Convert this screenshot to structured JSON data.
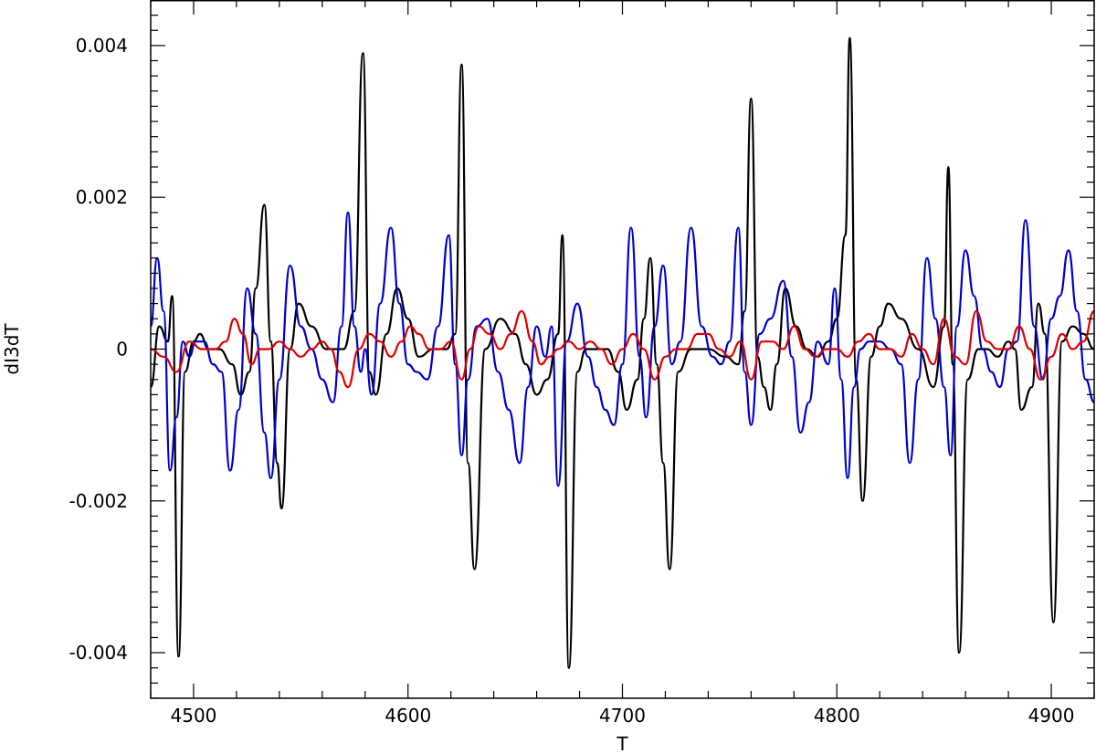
{
  "chart_data": {
    "type": "line",
    "xlabel": "T",
    "ylabel": "dI3dT",
    "xlim": [
      4480,
      4920
    ],
    "ylim": [
      -0.0046,
      0.0046
    ],
    "x_ticks": [
      4500,
      4600,
      4700,
      4800,
      4900
    ],
    "x_tick_labels": [
      "4500",
      "4600",
      "4700",
      "4800",
      "4900"
    ],
    "y_ticks": [
      -0.004,
      -0.002,
      0,
      0.002,
      0.004
    ],
    "y_tick_labels": [
      "-0.004",
      "-0.002",
      "0",
      "0.002",
      "0.004"
    ],
    "grid": false,
    "legend": "none",
    "series": [
      {
        "color": "#000000",
        "x": [
          4480,
          4484,
          4488,
          4490,
          4493,
          4496,
          4500,
          4503,
          4507,
          4512,
          4518,
          4522,
          4526,
          4529,
          4533,
          4536,
          4539,
          4541,
          4545,
          4549,
          4555,
          4562,
          4570,
          4575,
          4579,
          4582,
          4585,
          4590,
          4595,
          4600,
          4605,
          4612,
          4618,
          4622,
          4625,
          4628,
          4631,
          4636,
          4643,
          4650,
          4655,
          4660,
          4665,
          4670,
          4672,
          4675,
          4679,
          4683,
          4688,
          4693,
          4698,
          4702,
          4707,
          4710,
          4713,
          4716,
          4719,
          4722,
          4726,
          4732,
          4740,
          4748,
          4754,
          4757,
          4760,
          4763,
          4766,
          4769,
          4772,
          4776,
          4781,
          4786,
          4791,
          4796,
          4800,
          4804,
          4806,
          4809,
          4812,
          4816,
          4820,
          4824,
          4830,
          4838,
          4845,
          4850,
          4852,
          4854,
          4857,
          4861,
          4866,
          4870,
          4875,
          4880,
          4883,
          4886,
          4891,
          4894,
          4897,
          4901,
          4905,
          4910,
          4915,
          4920
        ],
        "y": [
          -0.0005,
          0.0003,
          0.0001,
          0.0007,
          -0.00405,
          -0.0003,
          0.0001,
          0.0002,
          0.0,
          0.0,
          -0.0002,
          -0.0006,
          -0.0003,
          0.0008,
          0.0019,
          0.0001,
          -0.0015,
          -0.0021,
          0.0,
          0.0006,
          0.0003,
          0.0,
          0.0,
          0.0005,
          0.0039,
          -0.0003,
          -0.0006,
          0.0002,
          0.0008,
          0.0004,
          -0.0001,
          0.0,
          0.0,
          0.0002,
          0.00375,
          -0.0015,
          -0.0029,
          0.0,
          0.0004,
          0.0002,
          -0.0002,
          -0.0006,
          -0.0004,
          0.0002,
          0.0015,
          -0.0042,
          -0.0003,
          0.0,
          0.0,
          0.0,
          -0.0003,
          -0.0008,
          -0.0004,
          0.0004,
          0.0012,
          -0.0002,
          -0.0015,
          -0.0029,
          -0.0003,
          0.0,
          0.0,
          -0.0001,
          -0.0002,
          0.0005,
          0.0033,
          -0.0001,
          -0.0005,
          -0.0008,
          -0.0002,
          0.0008,
          0.0003,
          0.0,
          -0.0001,
          0.0001,
          0.0004,
          0.0015,
          0.0041,
          -0.0004,
          -0.002,
          -0.0001,
          0.0003,
          0.0006,
          0.0004,
          0.0,
          -0.0005,
          0.0003,
          0.0024,
          -0.0002,
          -0.004,
          -0.0004,
          0.0,
          0.0,
          -0.0001,
          0.0001,
          0.0,
          -0.0008,
          -0.0005,
          0.0006,
          0.0002,
          -0.0036,
          0.0001,
          0.0003,
          0.0002,
          0.0
        ]
      },
      {
        "color": "#0000cc",
        "x": [
          4480,
          4483,
          4486,
          4489,
          4492,
          4495,
          4498,
          4501,
          4505,
          4509,
          4513,
          4517,
          4521,
          4525,
          4529,
          4533,
          4536,
          4540,
          4545,
          4550,
          4555,
          4560,
          4565,
          4569,
          4572,
          4575,
          4578,
          4580,
          4583,
          4587,
          4592,
          4596,
          4600,
          4604,
          4609,
          4614,
          4619,
          4622,
          4625,
          4628,
          4632,
          4637,
          4642,
          4647,
          4652,
          4656,
          4660,
          4664,
          4667,
          4670,
          4674,
          4679,
          4684,
          4688,
          4692,
          4696,
          4700,
          4704,
          4708,
          4711,
          4715,
          4719,
          4723,
          4727,
          4732,
          4737,
          4742,
          4746,
          4750,
          4754,
          4757,
          4760,
          4764,
          4769,
          4775,
          4779,
          4783,
          4787,
          4791,
          4796,
          4799,
          4802,
          4805,
          4808,
          4811,
          4815,
          4820,
          4825,
          4830,
          4834,
          4838,
          4842,
          4846,
          4850,
          4853,
          4856,
          4860,
          4864,
          4868,
          4872,
          4876,
          4880,
          4884,
          4888,
          4892,
          4896,
          4900,
          4904,
          4908,
          4912,
          4916,
          4920
        ],
        "y": [
          0.0003,
          0.0012,
          0.0005,
          -0.0016,
          -0.0009,
          0.0001,
          -0.0001,
          0.0001,
          0.0001,
          -0.0002,
          -0.0003,
          -0.0016,
          -0.0008,
          0.0008,
          0.0002,
          -0.0011,
          -0.0017,
          -0.0004,
          0.0011,
          0.0003,
          0.0,
          -0.0004,
          -0.0007,
          0.0003,
          0.0018,
          0.0003,
          -0.0003,
          0.0,
          -0.0006,
          0.0006,
          0.0016,
          0.0006,
          -0.0002,
          -0.0003,
          -0.0004,
          0.0003,
          0.0015,
          -0.0002,
          -0.0014,
          -0.0004,
          0.0003,
          0.0004,
          -0.0003,
          -0.0008,
          -0.0015,
          -0.0005,
          0.0003,
          -0.0001,
          0.0003,
          -0.0018,
          0.0001,
          0.0006,
          -0.0001,
          -0.0005,
          -0.0008,
          -0.001,
          -0.0002,
          0.0016,
          -0.0001,
          -0.0009,
          0.0003,
          0.0011,
          -0.0002,
          0.0001,
          0.0016,
          0.0003,
          -0.0001,
          -0.0002,
          0.0001,
          0.0016,
          -0.0003,
          -0.001,
          0.0002,
          0.0004,
          0.0009,
          -0.0001,
          -0.0011,
          -0.0007,
          0.0001,
          -0.0002,
          0.0008,
          -0.0004,
          -0.0017,
          -0.0005,
          0.0,
          0.0001,
          0.0001,
          0.0,
          -0.0002,
          -0.0015,
          -0.0004,
          0.0012,
          0.0004,
          -0.0005,
          -0.0014,
          0.0003,
          0.0013,
          0.0007,
          0.0,
          -0.0003,
          -0.0005,
          0.0,
          0.0001,
          0.0017,
          0.0003,
          -0.0004,
          0.0004,
          0.0007,
          0.0013,
          0.0005,
          -0.0004,
          -0.0007
        ]
      },
      {
        "color": "#dd0000",
        "x": [
          4480,
          4486,
          4492,
          4498,
          4504,
          4510,
          4515,
          4519,
          4523,
          4527,
          4531,
          4535,
          4540,
          4545,
          4550,
          4555,
          4560,
          4564,
          4568,
          4572,
          4577,
          4582,
          4587,
          4592,
          4597,
          4601,
          4605,
          4610,
          4615,
          4620,
          4625,
          4629,
          4633,
          4638,
          4643,
          4648,
          4653,
          4658,
          4662,
          4666,
          4670,
          4675,
          4680,
          4685,
          4690,
          4695,
          4700,
          4705,
          4710,
          4715,
          4720,
          4725,
          4730,
          4735,
          4740,
          4745,
          4750,
          4755,
          4760,
          4765,
          4770,
          4775,
          4780,
          4785,
          4790,
          4795,
          4800,
          4805,
          4810,
          4815,
          4820,
          4825,
          4830,
          4835,
          4840,
          4845,
          4850,
          4855,
          4860,
          4865,
          4870,
          4875,
          4880,
          4885,
          4890,
          4895,
          4900,
          4905,
          4910,
          4915,
          4920
        ],
        "y": [
          0.0,
          -0.0001,
          -0.0003,
          0.0001,
          0.0,
          0.0,
          0.0001,
          0.0004,
          0.0002,
          -0.0002,
          0.0,
          0.0,
          0.0001,
          0.0,
          -0.0001,
          0.0,
          0.0001,
          0.0,
          -0.0003,
          -0.0005,
          0.0,
          0.0002,
          0.0001,
          -0.0001,
          0.0001,
          0.0003,
          0.0002,
          0.0,
          0.0,
          0.0001,
          -0.0004,
          0.0,
          0.0003,
          0.0002,
          0.0,
          0.0002,
          0.0005,
          0.0001,
          -0.0002,
          -0.0001,
          0.0,
          0.0001,
          0.0,
          0.0001,
          0.0,
          -0.0002,
          0.0,
          0.0002,
          0.0,
          -0.0004,
          -0.0001,
          0.0,
          0.0,
          0.0002,
          0.0002,
          0.0,
          -0.0001,
          0.0001,
          -0.0004,
          0.0001,
          0.0001,
          0.0,
          0.0003,
          0.0,
          -0.0001,
          0.0,
          0.0,
          -0.0001,
          0.0001,
          0.0002,
          0.0,
          0.0,
          -0.0001,
          0.0002,
          0.0,
          -0.0002,
          0.0004,
          -0.0001,
          -0.0002,
          0.0005,
          0.0001,
          0.0,
          0.0,
          0.0003,
          0.0,
          -0.0004,
          -0.0001,
          0.0002,
          0.0,
          0.0001,
          0.0005
        ]
      }
    ]
  }
}
